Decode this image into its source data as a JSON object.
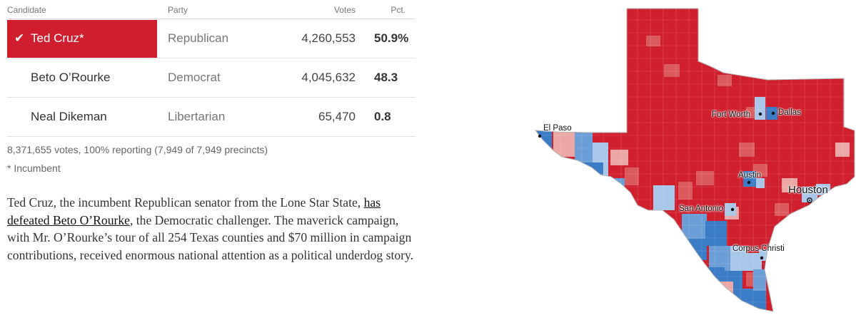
{
  "table": {
    "headers": {
      "candidate": "Candidate",
      "party": "Party",
      "votes": "Votes",
      "pct": "Pct."
    },
    "rows": [
      {
        "candidate": "Ted Cruz*",
        "party": "Republican",
        "votes": "4,260,553",
        "pct": "50.9%",
        "winner": true
      },
      {
        "candidate": "Beto O’Rourke",
        "party": "Democrat",
        "votes": "4,045,632",
        "pct": "48.3",
        "winner": false
      },
      {
        "candidate": "Neal Dikeman",
        "party": "Libertarian",
        "votes": "65,470",
        "pct": "0.8",
        "winner": false
      }
    ],
    "summary": "8,371,655 votes, 100% reporting (7,949 of 7,949 precincts)",
    "footnote": "* Incumbent"
  },
  "article": {
    "before_link": "Ted Cruz, the incumbent Republican senator from the Lone Star State, ",
    "link_text": "has defeated Beto O’Rourke",
    "after_link": ", the Democratic challenger. The maverick campaign, with Mr. O’Rourke’s tour of all 254 Texas counties and $70 million in campaign contributions, received enormous national attention as a political underdog story."
  },
  "map": {
    "cities": {
      "el_paso": "El Paso",
      "fort_worth": "Fort Worth",
      "dallas": "Dallas",
      "austin": "Austin",
      "houston": "Houston",
      "san_antonio": "San Antonio",
      "corpus_christi": "Corpus Christi"
    },
    "colors": {
      "rep_strong": "#d0202e",
      "rep_medium": "#db5a5e",
      "rep_light": "#eba7a5",
      "dem_strong": "#3a7cc6",
      "dem_medium": "#6b9ed6",
      "dem_light": "#a9c7e8"
    }
  }
}
